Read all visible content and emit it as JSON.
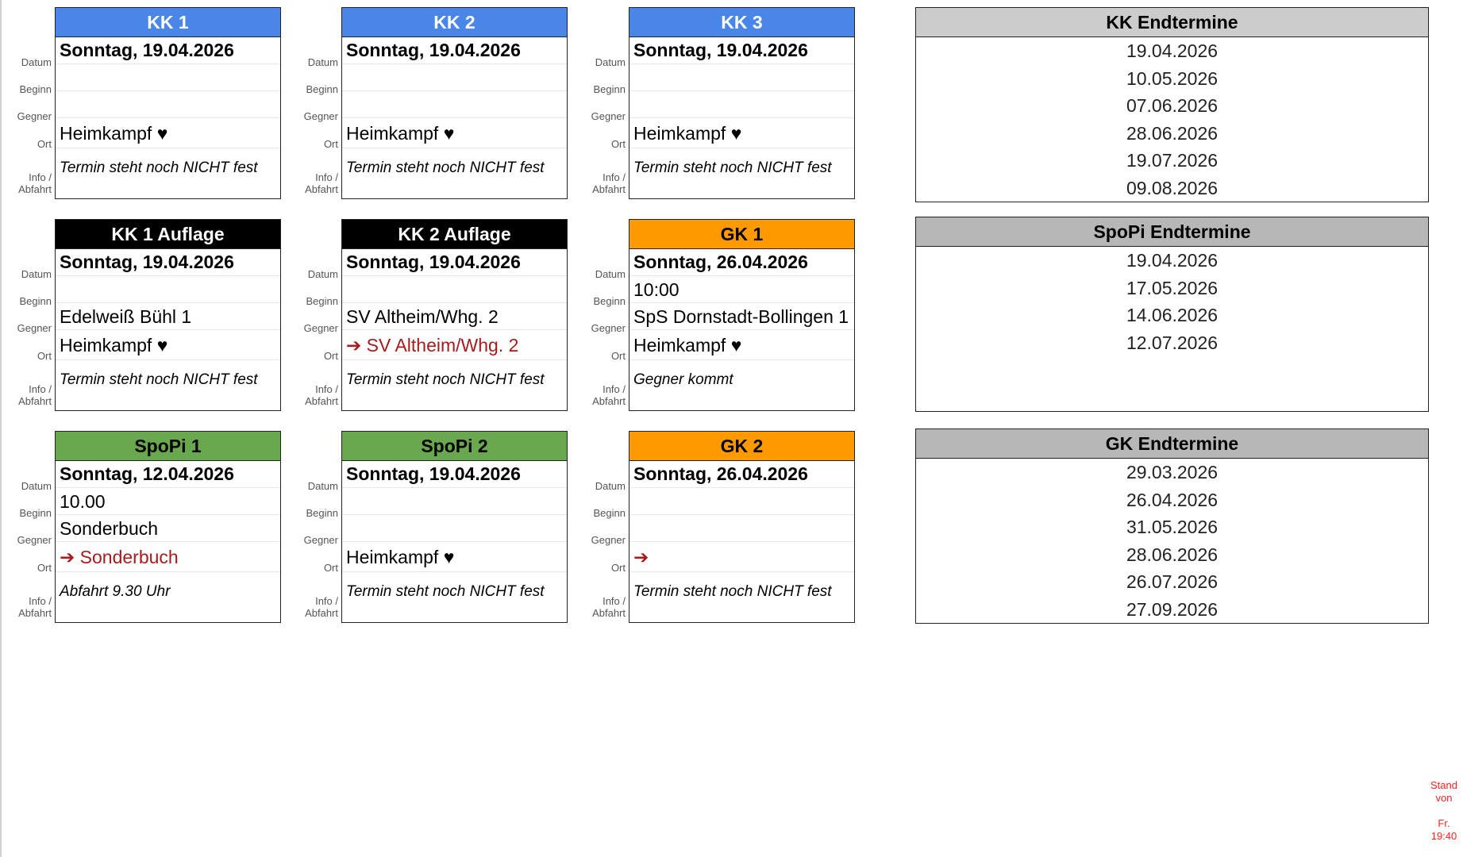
{
  "row_labels": {
    "datum": "Datum",
    "beginn": "Beginn",
    "gegner": "Gegner",
    "ort": "Ort",
    "info": "Info /",
    "abfahrt": "Abfahrt"
  },
  "cards": [
    {
      "title": "KK 1",
      "color": "#4a86e8",
      "text_color": "#ffffff",
      "datum": "Sonntag, 19.04.2026",
      "beginn": "",
      "gegner": "",
      "ort": "Heimkampf ♥",
      "ort_away": false,
      "info": "Termin steht noch NICHT fest"
    },
    {
      "title": "KK 2",
      "color": "#4a86e8",
      "text_color": "#ffffff",
      "datum": "Sonntag, 19.04.2026",
      "beginn": "",
      "gegner": "",
      "ort": "Heimkampf ♥",
      "ort_away": false,
      "info": "Termin steht noch NICHT fest"
    },
    {
      "title": "KK 3",
      "color": "#4a86e8",
      "text_color": "#ffffff",
      "datum": "Sonntag, 19.04.2026",
      "beginn": "",
      "gegner": "",
      "ort": "Heimkampf ♥",
      "ort_away": false,
      "info": "Termin steht noch NICHT fest"
    },
    {
      "title": "KK 1 Auflage",
      "color": "#000000",
      "text_color": "#ffffff",
      "datum": "Sonntag, 19.04.2026",
      "beginn": "",
      "gegner": "Edelweiß Bühl 1",
      "ort": "Heimkampf ♥",
      "ort_away": false,
      "info": "Termin steht noch NICHT fest"
    },
    {
      "title": "KK 2 Auflage",
      "color": "#000000",
      "text_color": "#ffffff",
      "datum": "Sonntag, 19.04.2026",
      "beginn": "",
      "gegner": "SV Altheim/Whg. 2",
      "ort": "➔ SV Altheim/Whg. 2",
      "ort_away": true,
      "info": "Termin steht noch NICHT fest"
    },
    {
      "title": "GK 1",
      "color": "#ff9900",
      "text_color": "#000000",
      "datum": "Sonntag, 26.04.2026",
      "beginn": "10:00",
      "gegner": "SpS Dornstadt-Bollingen 1",
      "ort": "Heimkampf ♥",
      "ort_away": false,
      "info": "Gegner kommt"
    },
    {
      "title": "SpoPi 1",
      "color": "#6aa84f",
      "text_color": "#000000",
      "datum": "Sonntag, 12.04.2026",
      "beginn": "10.00",
      "gegner": "Sonderbuch",
      "ort": "➔ Sonderbuch",
      "ort_away": true,
      "info": "Abfahrt 9.30 Uhr"
    },
    {
      "title": "SpoPi 2",
      "color": "#6aa84f",
      "text_color": "#000000",
      "datum": "Sonntag, 19.04.2026",
      "beginn": "",
      "gegner": "",
      "ort": "Heimkampf ♥",
      "ort_away": false,
      "info": "Termin steht noch NICHT fest"
    },
    {
      "title": "GK 2",
      "color": "#ff9900",
      "text_color": "#000000",
      "datum": "Sonntag, 26.04.2026",
      "beginn": "",
      "gegner": "",
      "ort": "➔",
      "ort_away": true,
      "info": "Termin steht noch NICHT fest"
    }
  ],
  "endtermine": [
    {
      "title": "KK Endtermine",
      "color": "#cccccc",
      "dates": [
        "19.04.2026",
        "10.05.2026",
        "07.06.2026",
        "28.06.2026",
        "19.07.2026",
        "09.08.2026"
      ]
    },
    {
      "title": "SpoPi Endtermine",
      "color": "#b7b7b7",
      "dates": [
        "19.04.2026",
        "17.05.2026",
        "14.06.2026",
        "12.07.2026"
      ]
    },
    {
      "title": "GK Endtermine",
      "color": "#b7b7b7",
      "dates": [
        "29.03.2026",
        "26.04.2026",
        "31.05.2026",
        "28.06.2026",
        "26.07.2026",
        "27.09.2026"
      ]
    }
  ],
  "stand": {
    "line1": "Stand",
    "line2": "von",
    "line3": "Fr.",
    "line4": "19:40"
  }
}
